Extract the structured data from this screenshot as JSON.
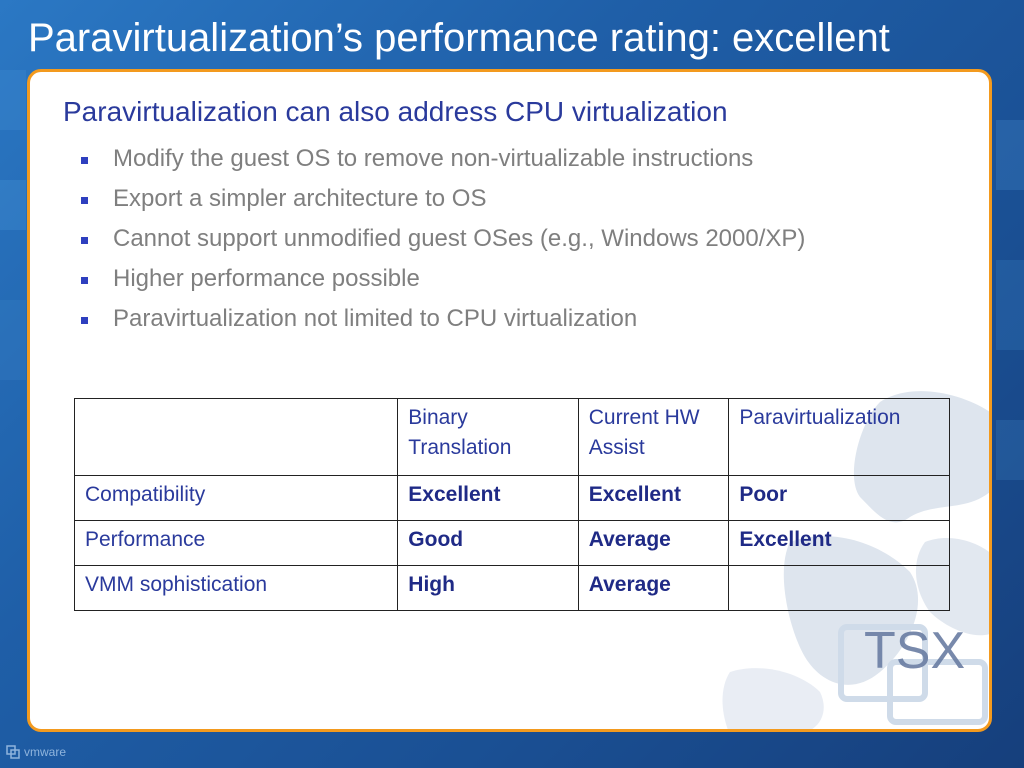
{
  "slide": {
    "title": "Paravirtualization’s performance rating: excellent"
  },
  "content": {
    "heading": "Paravirtualization can also address CPU virtualization",
    "bullets": [
      "Modify the guest OS to remove non-virtualizable instructions",
      "Export a simpler architecture to OS",
      "Cannot support unmodified guest OSes (e.g., Windows 2000/XP)",
      "Higher performance possible",
      "Paravirtualization not limited to CPU virtualization"
    ]
  },
  "table": {
    "headers": [
      "",
      "Binary Translation",
      "Current HW Assist",
      "Paravirtualization"
    ],
    "rows": [
      {
        "label": "Compatibility",
        "values": [
          "Excellent",
          "Excellent",
          "Poor"
        ]
      },
      {
        "label": "Performance",
        "values": [
          "Good",
          "Average",
          "Excellent"
        ]
      },
      {
        "label": "VMM sophistication",
        "values": [
          "High",
          "Average",
          ""
        ]
      }
    ]
  },
  "branding": {
    "event_logo": "TSX",
    "company_logo": "vmware"
  },
  "colors": {
    "background": "#1f5fa8",
    "panel_border": "#f39a1e",
    "heading_text": "#2a3a9c",
    "bullet_text": "#7f7f7f",
    "bullet_marker": "#2e3fbf"
  }
}
